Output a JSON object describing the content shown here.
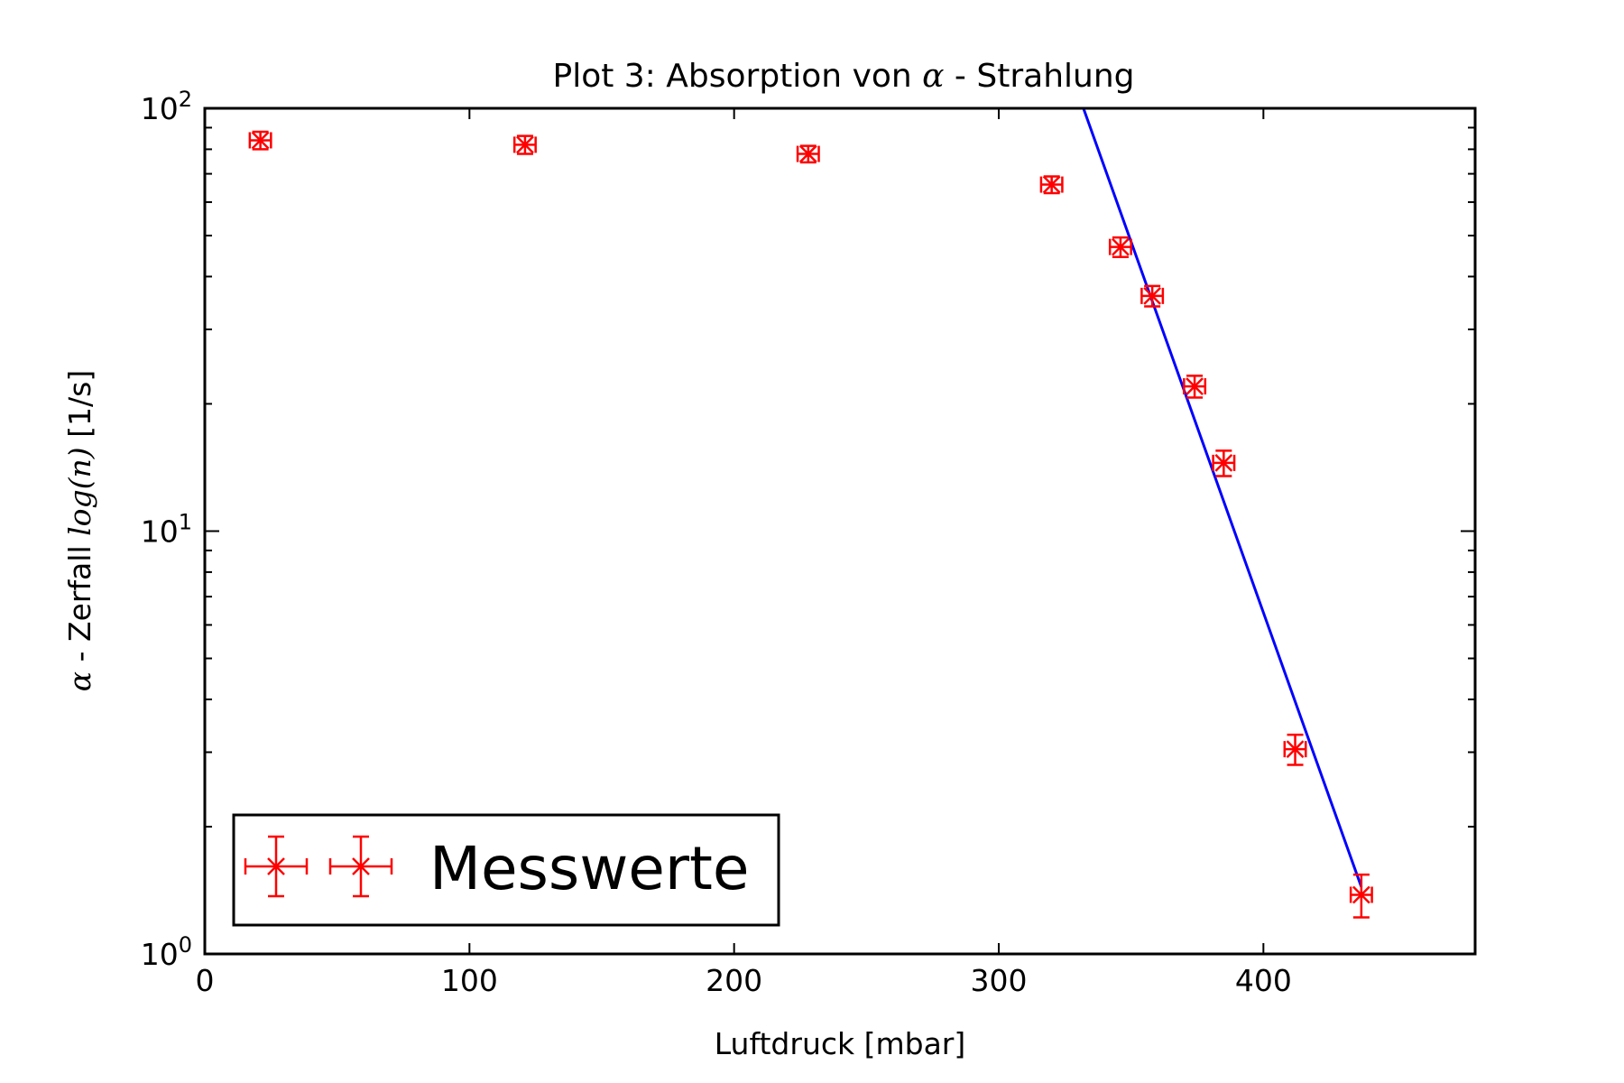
{
  "chart_data": {
    "type": "scatter",
    "title_prefix": "Plot 3: Absorption von ",
    "title_symbol": "α",
    "title_suffix": " - Strahlung",
    "xlabel": "Luftdruck [mbar]",
    "ylabel_prefix": "α",
    "ylabel_middle": " - Zerfall ",
    "ylabel_math": "log(n)",
    "ylabel_suffix": " [1/s]",
    "xlim": [
      0,
      480
    ],
    "ylim": [
      1,
      100
    ],
    "yscale": "log",
    "grid": false,
    "legend_position": "lower-left",
    "xticks": [
      0,
      100,
      200,
      300,
      400
    ],
    "yticks": [
      {
        "value": 1,
        "base": "10",
        "exp": "0"
      },
      {
        "value": 10,
        "base": "10",
        "exp": "1"
      },
      {
        "value": 100,
        "base": "10",
        "exp": "2"
      }
    ],
    "series": [
      {
        "name": "Messwerte",
        "kind": "errorbar",
        "color": "#ff0000",
        "x": [
          21,
          121,
          228,
          320,
          346,
          358,
          374,
          385,
          412,
          437
        ],
        "y": [
          84,
          82,
          78,
          66,
          47,
          36,
          22,
          14.5,
          3.05,
          1.38
        ],
        "xerr": [
          4,
          4,
          4,
          4,
          4,
          4,
          4,
          4,
          4,
          4
        ],
        "yerr": [
          4,
          4,
          3.5,
          3,
          2.5,
          2,
          1.3,
          1,
          0.25,
          0.16
        ]
      },
      {
        "name": "",
        "kind": "fit-line",
        "color": "#0000ff",
        "x": [
          332,
          437
        ],
        "y": [
          100,
          1.44
        ]
      }
    ]
  }
}
